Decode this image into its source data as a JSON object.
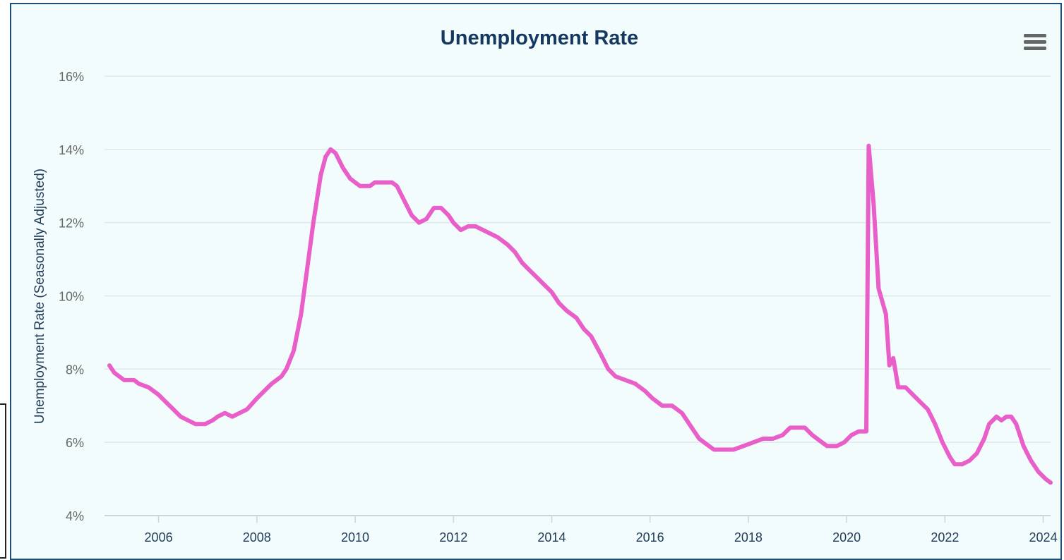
{
  "chart_data": {
    "type": "line",
    "title": "Unemployment Rate",
    "ylabel": "Unemployment Rate (Seasonally Adjusted)",
    "xlabel": "",
    "xlim": [
      2004.9,
      2024.15
    ],
    "ylim": [
      4,
      16
    ],
    "y_ticks": [
      4,
      6,
      8,
      10,
      12,
      14,
      16
    ],
    "y_tick_labels": [
      "4%",
      "6%",
      "8%",
      "10%",
      "12%",
      "14%",
      "16%"
    ],
    "x_ticks": [
      2006,
      2008,
      2010,
      2012,
      2014,
      2016,
      2018,
      2020,
      2022,
      2024
    ],
    "x_tick_labels": [
      "2006",
      "2008",
      "2010",
      "2012",
      "2014",
      "2016",
      "2018",
      "2020",
      "2022",
      "2024"
    ],
    "grid": "horizontal",
    "legend": "none",
    "series": [
      {
        "color": "#e85fc9",
        "points": [
          [
            2005.0,
            8.1
          ],
          [
            2005.1,
            7.9
          ],
          [
            2005.3,
            7.7
          ],
          [
            2005.5,
            7.7
          ],
          [
            2005.6,
            7.6
          ],
          [
            2005.8,
            7.5
          ],
          [
            2006.0,
            7.3
          ],
          [
            2006.15,
            7.1
          ],
          [
            2006.3,
            6.9
          ],
          [
            2006.45,
            6.7
          ],
          [
            2006.6,
            6.6
          ],
          [
            2006.75,
            6.5
          ],
          [
            2006.95,
            6.5
          ],
          [
            2007.1,
            6.6
          ],
          [
            2007.2,
            6.7
          ],
          [
            2007.35,
            6.8
          ],
          [
            2007.5,
            6.7
          ],
          [
            2007.65,
            6.8
          ],
          [
            2007.8,
            6.9
          ],
          [
            2008.0,
            7.2
          ],
          [
            2008.15,
            7.4
          ],
          [
            2008.3,
            7.6
          ],
          [
            2008.5,
            7.8
          ],
          [
            2008.6,
            8.0
          ],
          [
            2008.75,
            8.5
          ],
          [
            2008.9,
            9.5
          ],
          [
            2009.0,
            10.5
          ],
          [
            2009.15,
            12.0
          ],
          [
            2009.3,
            13.3
          ],
          [
            2009.4,
            13.8
          ],
          [
            2009.5,
            14.0
          ],
          [
            2009.6,
            13.9
          ],
          [
            2009.75,
            13.5
          ],
          [
            2009.9,
            13.2
          ],
          [
            2010.0,
            13.1
          ],
          [
            2010.1,
            13.0
          ],
          [
            2010.3,
            13.0
          ],
          [
            2010.4,
            13.1
          ],
          [
            2010.6,
            13.1
          ],
          [
            2010.75,
            13.1
          ],
          [
            2010.85,
            13.0
          ],
          [
            2011.0,
            12.6
          ],
          [
            2011.15,
            12.2
          ],
          [
            2011.3,
            12.0
          ],
          [
            2011.45,
            12.1
          ],
          [
            2011.6,
            12.4
          ],
          [
            2011.75,
            12.4
          ],
          [
            2011.9,
            12.2
          ],
          [
            2012.0,
            12.0
          ],
          [
            2012.15,
            11.8
          ],
          [
            2012.3,
            11.9
          ],
          [
            2012.45,
            11.9
          ],
          [
            2012.6,
            11.8
          ],
          [
            2012.75,
            11.7
          ],
          [
            2012.9,
            11.6
          ],
          [
            2013.1,
            11.4
          ],
          [
            2013.25,
            11.2
          ],
          [
            2013.4,
            10.9
          ],
          [
            2013.55,
            10.7
          ],
          [
            2013.7,
            10.5
          ],
          [
            2013.85,
            10.3
          ],
          [
            2014.0,
            10.1
          ],
          [
            2014.15,
            9.8
          ],
          [
            2014.3,
            9.6
          ],
          [
            2014.5,
            9.4
          ],
          [
            2014.65,
            9.1
          ],
          [
            2014.8,
            8.9
          ],
          [
            2015.0,
            8.4
          ],
          [
            2015.15,
            8.0
          ],
          [
            2015.3,
            7.8
          ],
          [
            2015.5,
            7.7
          ],
          [
            2015.7,
            7.6
          ],
          [
            2015.9,
            7.4
          ],
          [
            2016.05,
            7.2
          ],
          [
            2016.25,
            7.0
          ],
          [
            2016.45,
            7.0
          ],
          [
            2016.65,
            6.8
          ],
          [
            2016.85,
            6.4
          ],
          [
            2017.0,
            6.1
          ],
          [
            2017.15,
            5.95
          ],
          [
            2017.3,
            5.8
          ],
          [
            2017.5,
            5.8
          ],
          [
            2017.7,
            5.8
          ],
          [
            2017.9,
            5.9
          ],
          [
            2018.1,
            6.0
          ],
          [
            2018.3,
            6.1
          ],
          [
            2018.5,
            6.1
          ],
          [
            2018.7,
            6.2
          ],
          [
            2018.85,
            6.4
          ],
          [
            2019.0,
            6.4
          ],
          [
            2019.15,
            6.4
          ],
          [
            2019.3,
            6.2
          ],
          [
            2019.5,
            6.0
          ],
          [
            2019.6,
            5.9
          ],
          [
            2019.8,
            5.9
          ],
          [
            2019.95,
            6.0
          ],
          [
            2020.1,
            6.2
          ],
          [
            2020.25,
            6.3
          ],
          [
            2020.4,
            6.3
          ],
          [
            2020.45,
            14.1
          ],
          [
            2020.55,
            12.5
          ],
          [
            2020.65,
            10.2
          ],
          [
            2020.8,
            9.5
          ],
          [
            2020.87,
            8.1
          ],
          [
            2020.95,
            8.3
          ],
          [
            2021.05,
            7.5
          ],
          [
            2021.2,
            7.5
          ],
          [
            2021.35,
            7.3
          ],
          [
            2021.5,
            7.1
          ],
          [
            2021.65,
            6.9
          ],
          [
            2021.8,
            6.5
          ],
          [
            2021.95,
            6.0
          ],
          [
            2022.1,
            5.6
          ],
          [
            2022.2,
            5.4
          ],
          [
            2022.35,
            5.4
          ],
          [
            2022.5,
            5.5
          ],
          [
            2022.65,
            5.7
          ],
          [
            2022.8,
            6.1
          ],
          [
            2022.9,
            6.5
          ],
          [
            2023.05,
            6.7
          ],
          [
            2023.15,
            6.6
          ],
          [
            2023.25,
            6.7
          ],
          [
            2023.35,
            6.7
          ],
          [
            2023.45,
            6.5
          ],
          [
            2023.6,
            5.9
          ],
          [
            2023.75,
            5.5
          ],
          [
            2023.9,
            5.2
          ],
          [
            2024.05,
            5.0
          ],
          [
            2024.15,
            4.9
          ]
        ]
      }
    ]
  }
}
